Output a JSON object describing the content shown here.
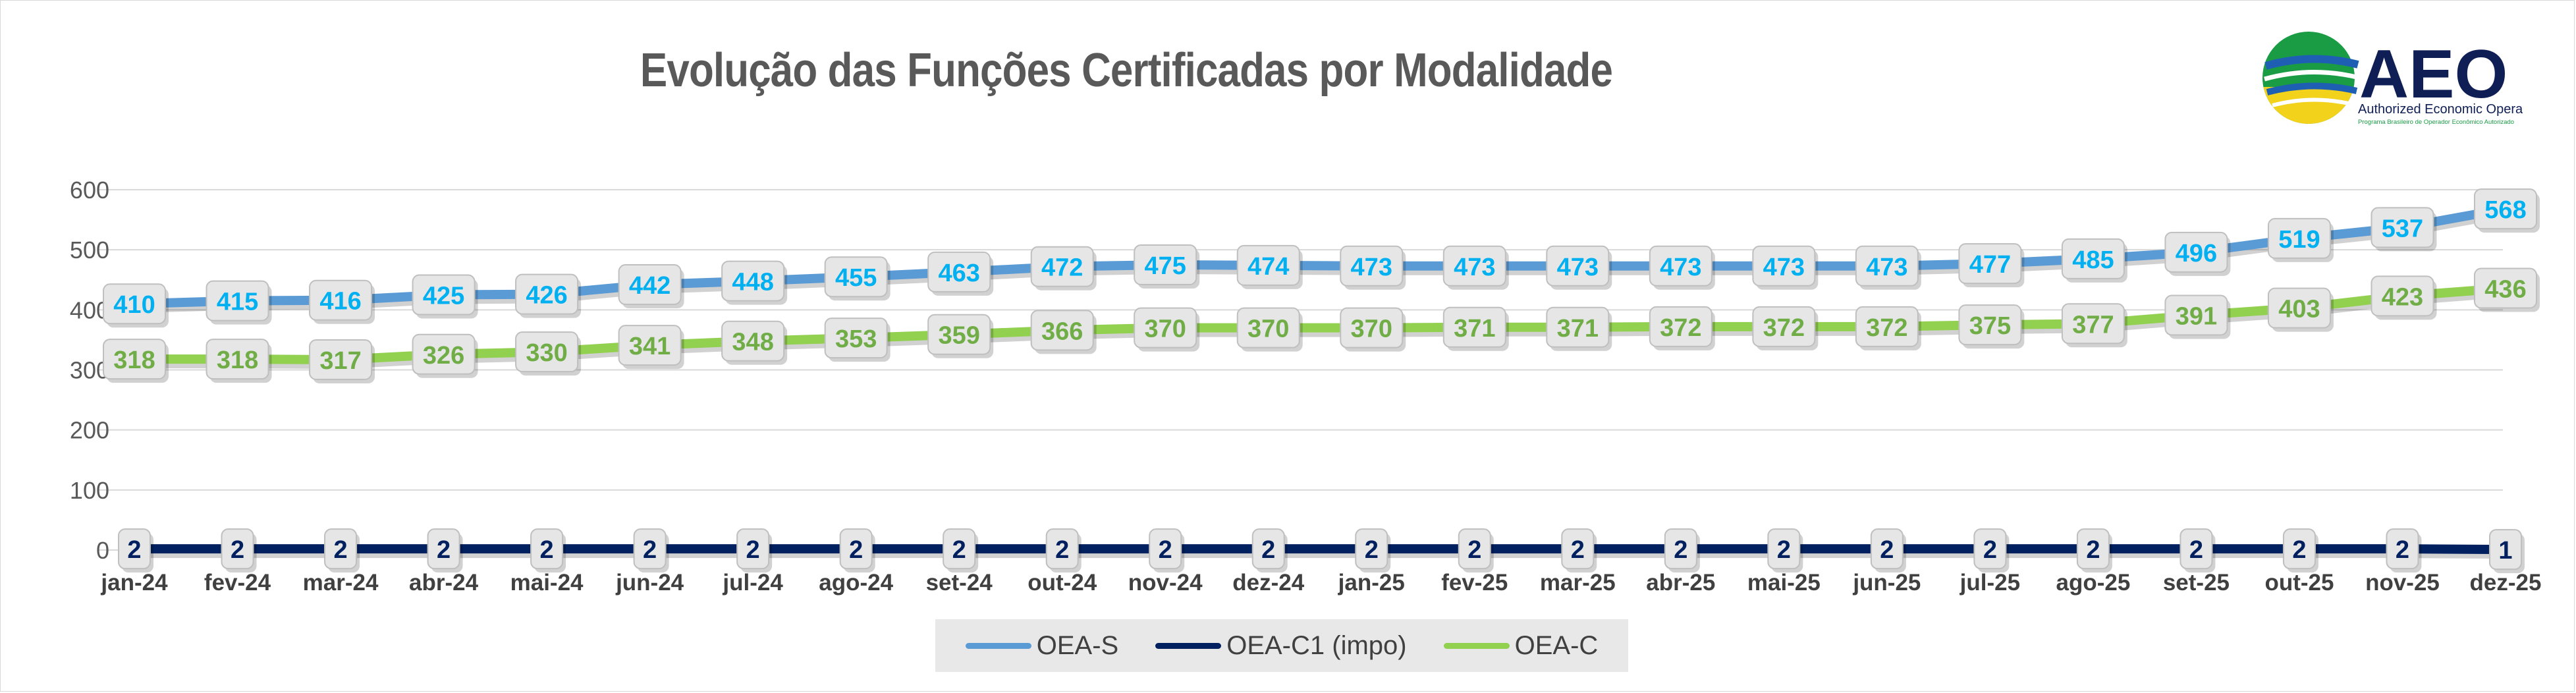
{
  "chart_data": {
    "type": "line",
    "title": "Evolução das Funções Certificadas por Modalidade",
    "categories": [
      "jan-24",
      "fev-24",
      "mar-24",
      "abr-24",
      "mai-24",
      "jun-24",
      "jul-24",
      "ago-24",
      "set-24",
      "out-24",
      "nov-24",
      "dez-24",
      "jan-25",
      "fev-25",
      "mar-25",
      "abr-25",
      "mai-25",
      "jun-25",
      "jul-25",
      "ago-25",
      "set-25",
      "out-25",
      "nov-25",
      "dez-25"
    ],
    "series": [
      {
        "name": "OEA-S",
        "color": "#5b9bd5",
        "label_color": "#00b0f0",
        "values": [
          410,
          415,
          416,
          425,
          426,
          442,
          448,
          455,
          463,
          472,
          475,
          474,
          473,
          473,
          473,
          473,
          473,
          473,
          477,
          485,
          496,
          519,
          537,
          568
        ]
      },
      {
        "name": "OEA-C1 (impo)",
        "color": "#002060",
        "label_color": "#002060",
        "values": [
          2,
          2,
          2,
          2,
          2,
          2,
          2,
          2,
          2,
          2,
          2,
          2,
          2,
          2,
          2,
          2,
          2,
          2,
          2,
          2,
          2,
          2,
          2,
          1
        ]
      },
      {
        "name": "OEA-C",
        "color": "#92d050",
        "label_color": "#70ad47",
        "values": [
          318,
          318,
          317,
          326,
          330,
          341,
          348,
          353,
          359,
          366,
          370,
          370,
          370,
          371,
          371,
          372,
          372,
          372,
          375,
          377,
          391,
          403,
          423,
          436
        ]
      }
    ],
    "ylim": [
      0,
      600
    ],
    "yticks": [
      0,
      100,
      200,
      300,
      400,
      500,
      600
    ],
    "grid": true,
    "legend_position": "bottom"
  },
  "logo": {
    "text": "AEO",
    "tagline": "Authorized Economic Operator",
    "subtagline": "Programa Brasileiro de Operador Econômico Autorizado"
  }
}
